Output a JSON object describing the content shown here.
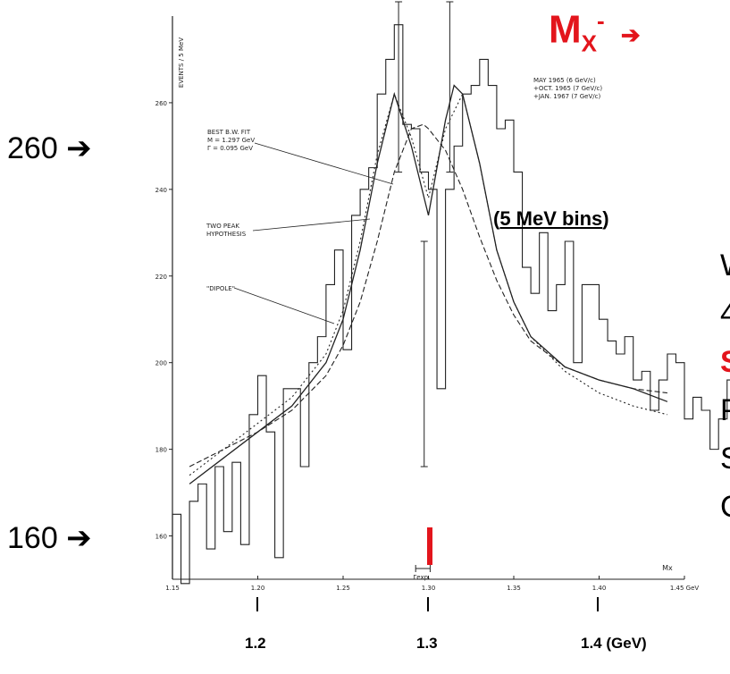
{
  "slide": {
    "title_main": "M",
    "title_sub": "X",
    "title_sup": "-",
    "title_arrow": "➔",
    "bins_open": "(",
    "bins_text": "5 MeV bins",
    "bins_close": ")",
    "label_260": "260 ➔",
    "label_160": "160 ➔",
    "partial_lines": [
      "W",
      "4",
      "S",
      "P",
      "S",
      "C"
    ],
    "bottom_ticks": [
      "1.2",
      "1.3",
      "1.4  (GeV)"
    ]
  },
  "colors": {
    "red": "#e3151c",
    "ink": "#222222"
  },
  "chart_data": {
    "type": "line",
    "ylabel": "EVENTS / 5 MeV",
    "xlabel": "Mx",
    "x_unit": "GeV",
    "xlim": [
      1.15,
      1.45
    ],
    "ylim": [
      150,
      280
    ],
    "x_ticks": [
      "1.15",
      "1.20",
      "1.25",
      "1.30",
      "1.35",
      "1.40",
      "1.45 GeV"
    ],
    "y_ticks": [
      "160",
      "180",
      "200",
      "220",
      "240",
      "260"
    ],
    "legend": [
      "MAY 1965  (6 GeV/c)",
      "+OCT. 1965  (7 GeV/c)",
      "+JAN. 1967  (7 GeV/c)"
    ],
    "annotations": {
      "bw_fit": [
        "BEST B.W. FIT",
        "M = 1.297 GeV",
        "Γ = 0.095 GeV"
      ],
      "two_peak": [
        "TWO PEAK",
        "HYPOTHESIS"
      ],
      "dipole": "\"DIPOLE\"",
      "resolution": "Γexp."
    },
    "histogram": {
      "bin_width": 0.005,
      "x_start": 1.15,
      "values": [
        165,
        149,
        168,
        172,
        157,
        176,
        161,
        177,
        158,
        188,
        197,
        184,
        155,
        194,
        194,
        176,
        200,
        206,
        218,
        226,
        203,
        234,
        240,
        245,
        262,
        270,
        278,
        255,
        254,
        244,
        240,
        194,
        240,
        250,
        262,
        264,
        270,
        264,
        254,
        256,
        244,
        222,
        216,
        230,
        212,
        218,
        228,
        200,
        218,
        218,
        210,
        205,
        202,
        206,
        196,
        198,
        189,
        196,
        202,
        200,
        187,
        192,
        189,
        180,
        187,
        196,
        209,
        200,
        208,
        174,
        178,
        182,
        155,
        197,
        198,
        201,
        154,
        186
      ]
    },
    "series": [
      {
        "name": "BEST B.W. FIT",
        "x": [
          1.16,
          1.18,
          1.2,
          1.22,
          1.24,
          1.25,
          1.26,
          1.27,
          1.28,
          1.29,
          1.297,
          1.3,
          1.31,
          1.32,
          1.33,
          1.34,
          1.35,
          1.36,
          1.38,
          1.4,
          1.42,
          1.44
        ],
        "y": [
          176,
          180,
          184,
          189,
          197,
          204,
          214,
          228,
          244,
          254,
          255,
          254,
          249,
          240,
          229,
          219,
          211,
          205,
          199,
          196,
          194,
          193
        ]
      },
      {
        "name": "TWO PEAK HYPOTHESIS",
        "x": [
          1.16,
          1.18,
          1.2,
          1.22,
          1.24,
          1.25,
          1.26,
          1.27,
          1.28,
          1.29,
          1.3,
          1.31,
          1.315,
          1.32,
          1.33,
          1.34,
          1.35,
          1.36,
          1.38,
          1.4,
          1.42,
          1.44
        ],
        "y": [
          172,
          178,
          184,
          190,
          200,
          210,
          226,
          246,
          262,
          250,
          234,
          256,
          264,
          262,
          246,
          226,
          214,
          206,
          199,
          196,
          194,
          191
        ]
      },
      {
        "name": "\"DIPOLE\"",
        "x": [
          1.16,
          1.18,
          1.2,
          1.22,
          1.24,
          1.25,
          1.26,
          1.27,
          1.28,
          1.29,
          1.3,
          1.31,
          1.32,
          1.33,
          1.34,
          1.35,
          1.36,
          1.38,
          1.4,
          1.42,
          1.44
        ],
        "y": [
          174,
          180,
          186,
          192,
          202,
          212,
          228,
          248,
          262,
          252,
          238,
          254,
          262,
          246,
          226,
          214,
          206,
          198,
          193,
          190,
          188
        ]
      }
    ]
  }
}
